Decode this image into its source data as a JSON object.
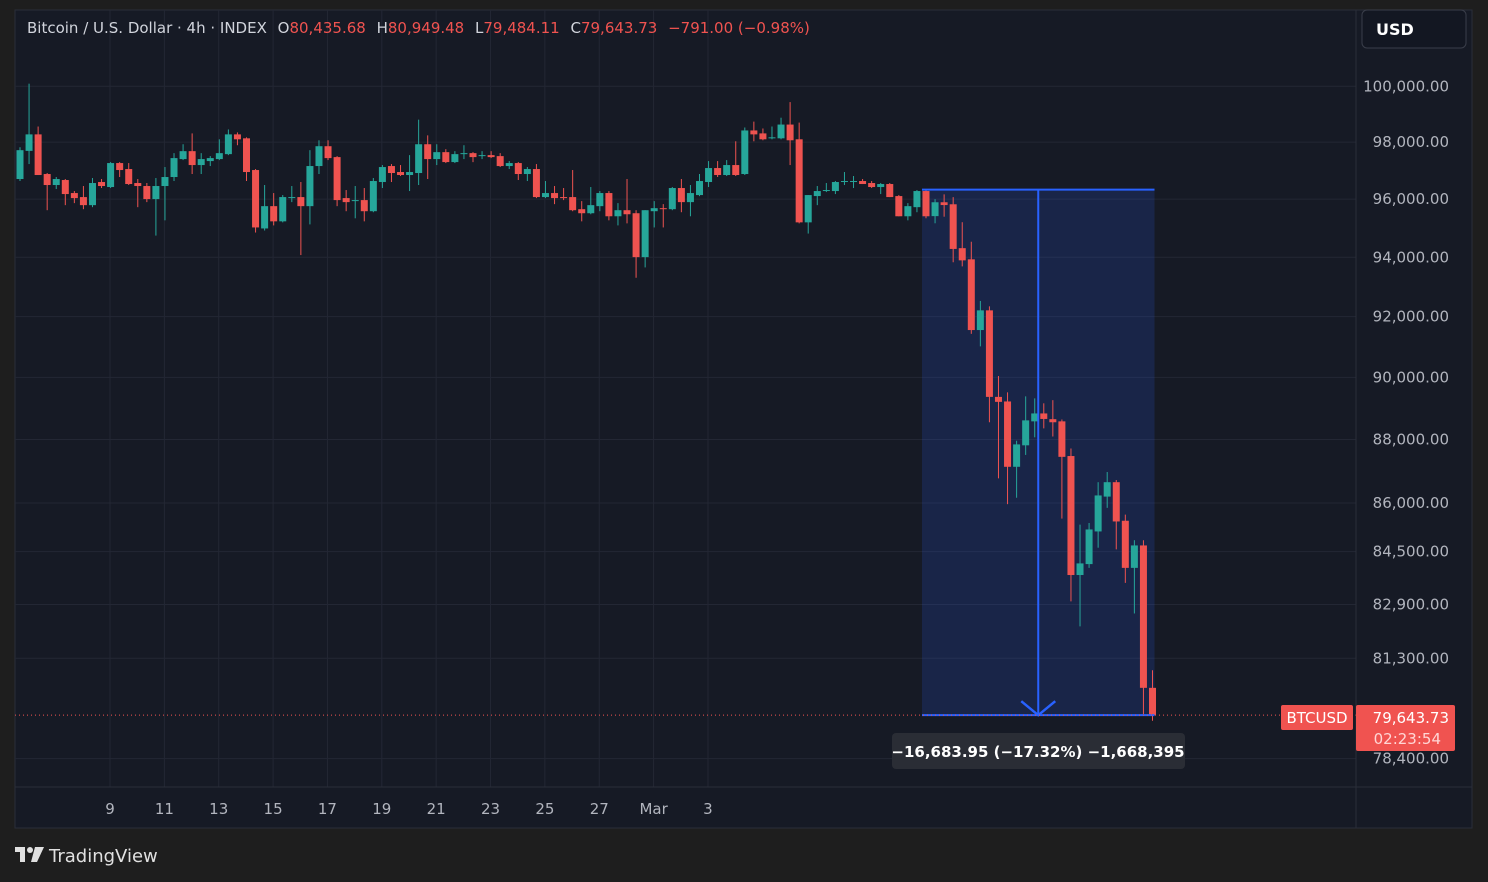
{
  "header": {
    "symbol_title": "Bitcoin / U.S. Dollar · 4h · INDEX",
    "open_label": "O",
    "open": "80,435.68",
    "high_label": "H",
    "high": "80,949.48",
    "low_label": "L",
    "low": "79,484.11",
    "close_label": "C",
    "close": "79,643.73",
    "change": "−791.00 (−0.98%)"
  },
  "currency_button": "USD",
  "price_axis_labels": [
    "100,000.00",
    "98,000.00",
    "96,000.00",
    "94,000.00",
    "92,000.00",
    "90,000.00",
    "88,000.00",
    "86,000.00",
    "84,500.00",
    "82,900.00",
    "81,300.00",
    "78,400.00"
  ],
  "time_axis_labels": [
    "9",
    "11",
    "13",
    "15",
    "17",
    "19",
    "21",
    "23",
    "25",
    "27",
    "Mar",
    "3"
  ],
  "last_price": {
    "symbol": "BTCUSD",
    "price": "79,643.73",
    "countdown": "02:23:54"
  },
  "measure": {
    "label": "−16,683.95 (−17.32%) −1,668,395",
    "from_price": 96327.68,
    "to_price": 79643.73
  },
  "watermark": "TradingView",
  "colors": {
    "up": "#26a69a",
    "down": "#ef5350",
    "measure": "#2962ff",
    "background": "#161a25"
  },
  "chart_data": {
    "type": "candlestick",
    "y_scale": "log",
    "ylim": [
      77600,
      102800
    ],
    "grid": true,
    "interval": "4h",
    "candles_ohlc": [
      [
        96700,
        97820,
        96630,
        97715
      ],
      [
        97690,
        100095,
        97225,
        98275
      ],
      [
        98275,
        98555,
        96840,
        96840
      ],
      [
        96875,
        96910,
        95615,
        96490
      ],
      [
        96490,
        96770,
        96350,
        96700
      ],
      [
        96665,
        96700,
        95790,
        96175
      ],
      [
        96210,
        96280,
        95860,
        96035
      ],
      [
        96070,
        96455,
        95650,
        95790
      ],
      [
        95790,
        96735,
        95720,
        96560
      ],
      [
        96595,
        96700,
        96385,
        96455
      ],
      [
        96420,
        97295,
        96385,
        97260
      ],
      [
        97260,
        97295,
        96770,
        97015
      ],
      [
        97050,
        97260,
        96490,
        96525
      ],
      [
        96560,
        96700,
        95720,
        96455
      ],
      [
        96455,
        96560,
        95895,
        96000
      ],
      [
        96000,
        96735,
        94740,
        96455
      ],
      [
        96455,
        97120,
        95265,
        96770
      ],
      [
        96770,
        97610,
        96630,
        97435
      ],
      [
        97400,
        97925,
        97365,
        97680
      ],
      [
        97680,
        98310,
        96875,
        97190
      ],
      [
        97190,
        97610,
        96875,
        97400
      ],
      [
        97330,
        97505,
        97155,
        97435
      ],
      [
        97400,
        98100,
        97365,
        97610
      ],
      [
        97575,
        98450,
        97540,
        98275
      ],
      [
        98275,
        98345,
        97890,
        98100
      ],
      [
        98135,
        98170,
        96630,
        96945
      ],
      [
        97015,
        97050,
        94845,
        95020
      ],
      [
        94985,
        96490,
        94915,
        95755
      ],
      [
        95755,
        96210,
        95090,
        95230
      ],
      [
        95230,
        96140,
        95195,
        96070
      ],
      [
        96035,
        96455,
        95895,
        96070
      ],
      [
        96070,
        96595,
        94075,
        95755
      ],
      [
        95755,
        97715,
        95125,
        97155
      ],
      [
        97155,
        98065,
        96875,
        97855
      ],
      [
        97855,
        98065,
        97365,
        97435
      ],
      [
        97470,
        97505,
        95755,
        95965
      ],
      [
        96035,
        96315,
        95580,
        95895
      ],
      [
        95930,
        96455,
        95335,
        95965
      ],
      [
        95965,
        96385,
        95230,
        95580
      ],
      [
        95580,
        96735,
        95545,
        96630
      ],
      [
        96595,
        97190,
        96385,
        97120
      ],
      [
        97155,
        97225,
        96595,
        96910
      ],
      [
        96945,
        97190,
        96805,
        96840
      ],
      [
        96840,
        97540,
        96280,
        96945
      ],
      [
        96910,
        98800,
        96490,
        97925
      ],
      [
        97925,
        98240,
        96700,
        97400
      ],
      [
        97400,
        97925,
        97190,
        97645
      ],
      [
        97645,
        97750,
        97260,
        97295
      ],
      [
        97295,
        97680,
        97260,
        97575
      ],
      [
        97575,
        97890,
        97400,
        97610
      ],
      [
        97610,
        97645,
        97295,
        97470
      ],
      [
        97505,
        97680,
        97400,
        97540
      ],
      [
        97540,
        97680,
        97435,
        97470
      ],
      [
        97505,
        97610,
        97120,
        97155
      ],
      [
        97155,
        97330,
        97050,
        97260
      ],
      [
        97260,
        97295,
        96665,
        96875
      ],
      [
        96875,
        97120,
        96630,
        97050
      ],
      [
        97050,
        97225,
        96035,
        96070
      ],
      [
        96070,
        96630,
        96035,
        96210
      ],
      [
        96210,
        96455,
        95825,
        96035
      ],
      [
        96070,
        96385,
        95965,
        96035
      ],
      [
        96070,
        97015,
        95580,
        95615
      ],
      [
        95650,
        95930,
        95230,
        95510
      ],
      [
        95510,
        96420,
        95475,
        95790
      ],
      [
        95755,
        96280,
        95580,
        96210
      ],
      [
        96210,
        96280,
        95265,
        95405
      ],
      [
        95405,
        95860,
        95090,
        95615
      ],
      [
        95615,
        96700,
        95160,
        95475
      ],
      [
        95510,
        95615,
        93305,
        94005
      ],
      [
        94005,
        95615,
        93655,
        95615
      ],
      [
        95580,
        95930,
        95020,
        95685
      ],
      [
        95685,
        95825,
        95020,
        95650
      ],
      [
        95650,
        96420,
        95615,
        96385
      ],
      [
        96385,
        96700,
        95545,
        95895
      ],
      [
        95895,
        96490,
        95405,
        96210
      ],
      [
        96140,
        96875,
        96105,
        96630
      ],
      [
        96595,
        97330,
        96420,
        97085
      ],
      [
        97085,
        97330,
        96770,
        96840
      ],
      [
        96840,
        97365,
        96805,
        97190
      ],
      [
        97190,
        98030,
        96805,
        96840
      ],
      [
        96875,
        98520,
        96840,
        98415
      ],
      [
        98415,
        98730,
        98030,
        98275
      ],
      [
        98310,
        98485,
        98065,
        98100
      ],
      [
        98135,
        98555,
        98100,
        98170
      ],
      [
        98135,
        98870,
        98100,
        98625
      ],
      [
        98625,
        99430,
        97190,
        98065
      ],
      [
        98100,
        98695,
        95160,
        95195
      ],
      [
        95195,
        96140,
        94810,
        96140
      ],
      [
        96105,
        96455,
        95790,
        96280
      ],
      [
        96280,
        96560,
        96245,
        96315
      ],
      [
        96280,
        96630,
        96175,
        96595
      ],
      [
        96595,
        96945,
        96490,
        96630
      ],
      [
        96595,
        96805,
        96385,
        96630
      ],
      [
        96630,
        96700,
        96525,
        96525
      ],
      [
        96560,
        96630,
        96385,
        96420
      ],
      [
        96420,
        96560,
        96175,
        96525
      ],
      [
        96525,
        96560,
        96070,
        96070
      ],
      [
        96105,
        96140,
        95405,
        95405
      ],
      [
        95405,
        95860,
        95265,
        95755
      ],
      [
        95720,
        96315,
        95545,
        96280
      ],
      [
        96280,
        96330,
        95335,
        95405
      ],
      [
        95410,
        95998,
        95163,
        95890
      ],
      [
        95890,
        96165,
        95390,
        95793
      ],
      [
        95820,
        96068,
        93830,
        94284
      ],
      [
        94310,
        95200,
        93690,
        93895
      ],
      [
        93930,
        94530,
        91430,
        91556
      ],
      [
        91556,
        92525,
        91017,
        92211
      ],
      [
        92211,
        92345,
        88551,
        89368
      ],
      [
        89368,
        90045,
        86771,
        89207
      ],
      [
        89220,
        89515,
        85965,
        87135
      ],
      [
        87135,
        87960,
        86165,
        87844
      ],
      [
        87815,
        89385,
        87510,
        88612
      ],
      [
        88580,
        89320,
        88070,
        88834
      ],
      [
        88834,
        89160,
        88355,
        88657
      ],
      [
        88650,
        89262,
        88095,
        88551
      ],
      [
        88580,
        88640,
        85517,
        87449
      ],
      [
        87475,
        87715,
        82993,
        83788
      ],
      [
        83788,
        85330,
        82245,
        84141
      ],
      [
        84120,
        85380,
        84005,
        85181
      ],
      [
        85120,
        86651,
        84620,
        86236
      ],
      [
        86200,
        86970,
        85850,
        86651
      ],
      [
        86651,
        86720,
        84570,
        85428
      ],
      [
        85450,
        85640,
        83550,
        84005
      ],
      [
        84005,
        84850,
        82630,
        84690
      ],
      [
        84690,
        84850,
        79675,
        80435.68
      ],
      [
        80435.68,
        80949.48,
        79484.11,
        79643.73
      ]
    ]
  }
}
